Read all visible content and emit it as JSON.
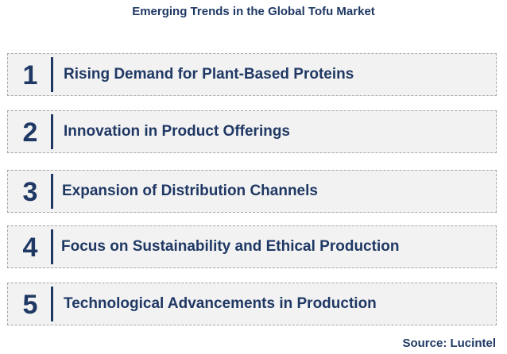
{
  "title": "Emerging Trends in the Global Tofu Market",
  "items": [
    {
      "number": "1",
      "label": "Rising Demand for Plant-Based Proteins"
    },
    {
      "number": "2",
      "label": "Innovation in Product Offerings"
    },
    {
      "number": "3",
      "label": "Expansion of Distribution Channels"
    },
    {
      "number": "4",
      "label": "Focus on Sustainability and Ethical Production"
    },
    {
      "number": "5",
      "label": "Technological Advancements in Production"
    }
  ],
  "source": "Source: Lucintel",
  "colors": {
    "text": "#1f3864",
    "box_fill": "#f2f2f2",
    "box_border": "#a6a6a6"
  }
}
